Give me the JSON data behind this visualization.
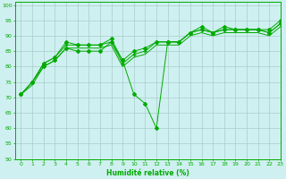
{
  "title": "",
  "xlabel": "Humidité relative (%)",
  "ylabel": "",
  "background_color": "#cff0f0",
  "grid_color": "#aacccc",
  "line_color": "#00aa00",
  "xlim": [
    -0.5,
    23
  ],
  "ylim": [
    50,
    101
  ],
  "yticks": [
    50,
    55,
    60,
    65,
    70,
    75,
    80,
    85,
    90,
    95,
    100
  ],
  "xticks": [
    0,
    1,
    2,
    3,
    4,
    5,
    6,
    7,
    8,
    9,
    10,
    11,
    12,
    13,
    14,
    15,
    16,
    17,
    18,
    19,
    20,
    21,
    22,
    23
  ],
  "series": [
    {
      "x": [
        0,
        1,
        2,
        3,
        4,
        5,
        6,
        7,
        8,
        9,
        10,
        11,
        12,
        13,
        14,
        15,
        16,
        17,
        18,
        19,
        20,
        21,
        22,
        23
      ],
      "y": [
        71,
        75,
        81,
        83,
        88,
        87,
        87,
        87,
        89,
        82,
        85,
        86,
        88,
        88,
        88,
        91,
        93,
        91,
        93,
        92,
        92,
        92,
        92,
        95
      ],
      "marker": "D",
      "markersize": 2.0
    },
    {
      "x": [
        0,
        1,
        2,
        3,
        4,
        5,
        6,
        7,
        8,
        9,
        10,
        11,
        12,
        13,
        14,
        15,
        16,
        17,
        18,
        19,
        20,
        21,
        22,
        23
      ],
      "y": [
        71,
        75,
        81,
        83,
        87,
        87,
        87,
        87,
        88,
        81,
        84,
        85,
        88,
        88,
        88,
        91,
        92,
        91,
        92,
        92,
        92,
        92,
        91,
        94
      ],
      "marker": "+",
      "markersize": 3.5
    },
    {
      "x": [
        0,
        1,
        2,
        3,
        4,
        5,
        6,
        7,
        8,
        9,
        10,
        11,
        12,
        13,
        14,
        15,
        16,
        17,
        18,
        19,
        20,
        21,
        22,
        23
      ],
      "y": [
        71,
        74,
        80,
        82,
        86,
        86,
        86,
        86,
        87,
        80,
        83,
        84,
        87,
        87,
        87,
        90,
        91,
        90,
        91,
        91,
        91,
        91,
        90,
        93
      ],
      "marker": null,
      "markersize": 0
    },
    {
      "x": [
        0,
        1,
        2,
        3,
        4,
        5,
        6,
        7,
        8,
        9,
        10,
        11,
        12,
        13,
        14,
        15,
        16,
        17,
        18,
        19,
        20,
        21,
        22,
        23
      ],
      "y": [
        71,
        75,
        80,
        82,
        86,
        85,
        85,
        85,
        88,
        82,
        71,
        68,
        60,
        88,
        88,
        91,
        92,
        91,
        92,
        92,
        92,
        92,
        91,
        94
      ],
      "marker": "D",
      "markersize": 2.0
    }
  ],
  "xlabel_fontsize": 5.5,
  "xlabel_fontweight": "bold",
  "tick_fontsize": 4.5,
  "ylabel_fontsize": 5
}
